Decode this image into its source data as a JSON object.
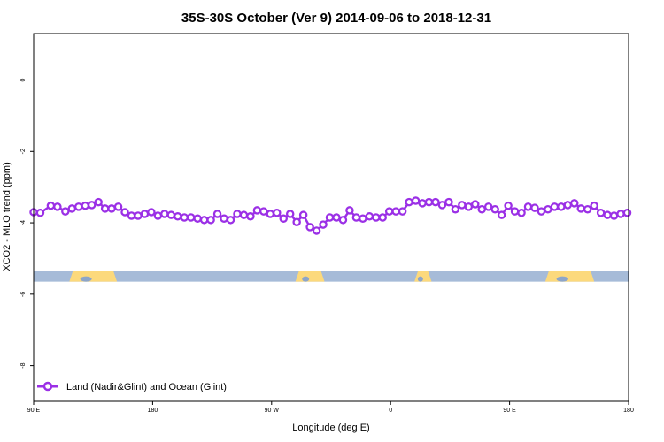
{
  "chart_data": {
    "type": "line",
    "title": "35S-30S October (Ver 9)   2014-09-06 to 2018-12-31",
    "xlabel": "Longitude (deg E)",
    "ylabel": "XCO2 - MLO trend (ppm)",
    "xlim": [
      90,
      540
    ],
    "ylim": [
      -9.0,
      1.3
    ],
    "x_ticks": [
      {
        "value": 90,
        "label": "90 E"
      },
      {
        "value": 180,
        "label": "180"
      },
      {
        "value": 270,
        "label": "90 W"
      },
      {
        "value": 360,
        "label": "0"
      },
      {
        "value": 450,
        "label": "90 E"
      },
      {
        "value": 540,
        "label": "180"
      }
    ],
    "y_ticks": [
      0,
      -2,
      -4,
      -6,
      -8
    ],
    "grid": false,
    "legend_position": "bottom-left",
    "series": [
      {
        "name": "Land (Nadir&Glint) and Ocean (Glint)",
        "color": "#9b30e6",
        "x": [
          90,
          95,
          103,
          108,
          114,
          119,
          124,
          129,
          134,
          139,
          144,
          149,
          154,
          159,
          164,
          169,
          174,
          179,
          184,
          189,
          194,
          199,
          204,
          209,
          214,
          219,
          224,
          229,
          234,
          239,
          244,
          249,
          254,
          259,
          264,
          269,
          274,
          279,
          284,
          289,
          294,
          299,
          304,
          309,
          314,
          319,
          324,
          329,
          334,
          339,
          344,
          349,
          354,
          359,
          364,
          369,
          374,
          379,
          384,
          389,
          394,
          399,
          404,
          409,
          414,
          419,
          424,
          429,
          434,
          439,
          444,
          449,
          454,
          459,
          464,
          469,
          474,
          479,
          484,
          489,
          494,
          499,
          504,
          509,
          514,
          519,
          524,
          529,
          534,
          539
        ],
        "y": [
          -3.7,
          -3.72,
          -3.52,
          -3.55,
          -3.68,
          -3.6,
          -3.55,
          -3.52,
          -3.5,
          -3.42,
          -3.6,
          -3.6,
          -3.55,
          -3.7,
          -3.8,
          -3.8,
          -3.75,
          -3.7,
          -3.8,
          -3.75,
          -3.78,
          -3.82,
          -3.85,
          -3.85,
          -3.88,
          -3.92,
          -3.92,
          -3.75,
          -3.88,
          -3.92,
          -3.75,
          -3.78,
          -3.82,
          -3.65,
          -3.68,
          -3.75,
          -3.72,
          -3.88,
          -3.75,
          -3.98,
          -3.78,
          -4.12,
          -4.22,
          -4.05,
          -3.85,
          -3.85,
          -3.92,
          -3.65,
          -3.85,
          -3.88,
          -3.82,
          -3.85,
          -3.85,
          -3.68,
          -3.68,
          -3.68,
          -3.42,
          -3.38,
          -3.45,
          -3.42,
          -3.42,
          -3.5,
          -3.42,
          -3.62,
          -3.5,
          -3.55,
          -3.48,
          -3.62,
          -3.55,
          -3.62,
          -3.78,
          -3.52,
          -3.68,
          -3.72,
          -3.55,
          -3.58,
          -3.68,
          -3.62,
          -3.55,
          -3.55,
          -3.5,
          -3.45,
          -3.6,
          -3.62,
          -3.52,
          -3.72,
          -3.78,
          -3.8,
          -3.75,
          -3.72
        ]
      }
    ],
    "surface_bar": {
      "y": -5.5,
      "ocean_color": "#a6bbd8",
      "land_color": "#fcd97c",
      "land_spans": [
        [
          117,
          153
        ],
        [
          288,
          310
        ],
        [
          378,
          391
        ],
        [
          477,
          514
        ]
      ],
      "dark_land_color": "#8da5c9"
    }
  }
}
